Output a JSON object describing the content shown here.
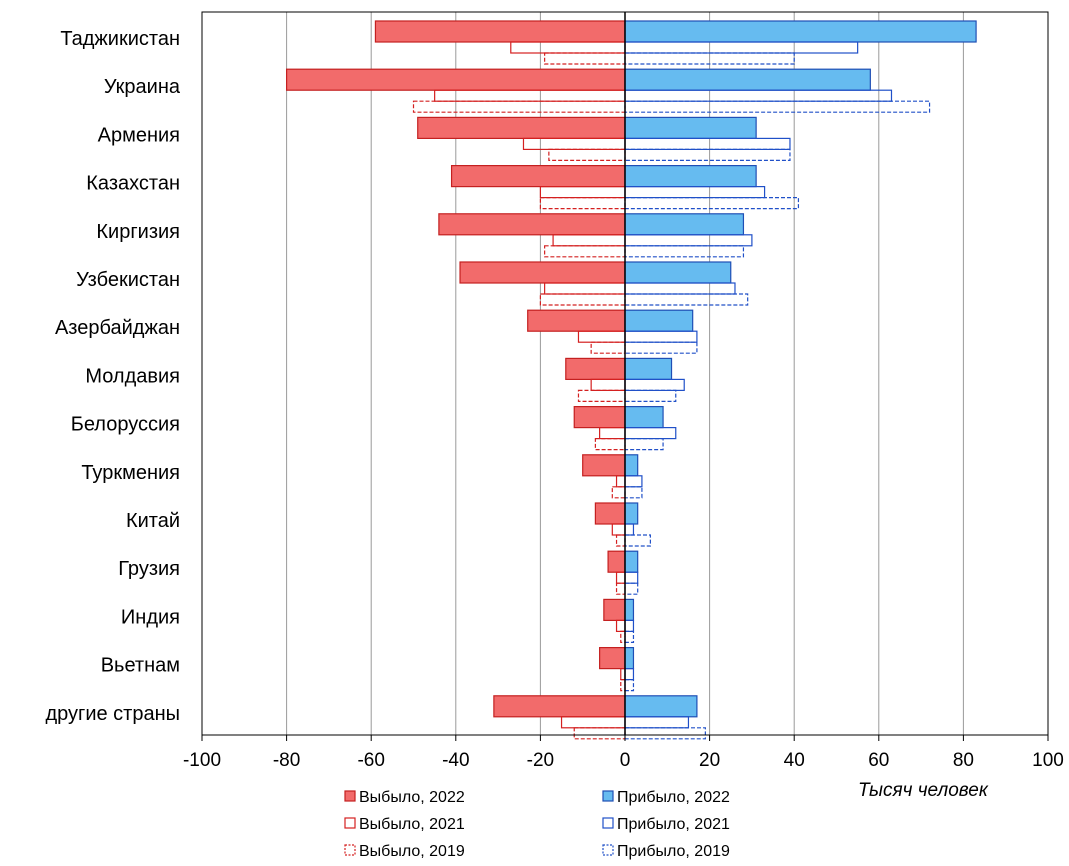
{
  "chart_data": {
    "type": "bar",
    "orientation": "horizontal",
    "unit_label": "Тысяч человек",
    "xlim": [
      -100,
      100
    ],
    "x_ticks": [
      "-100",
      "-80",
      "-60",
      "-40",
      "-20",
      "0",
      "20",
      "40",
      "60",
      "80",
      "100"
    ],
    "grid": true,
    "legend_position": "bottom",
    "categories": [
      "Таджикистан",
      "Украина",
      "Армения",
      "Казахстан",
      "Киргизия",
      "Узбекистан",
      "Азербайджан",
      "Молдавия",
      "Белоруссия",
      "Туркмения",
      "Китай",
      "Грузия",
      "Индия",
      "Вьетнам",
      "другие страны"
    ],
    "series": [
      {
        "name": "Выбыло, 2022",
        "values": [
          -59,
          -80,
          -49,
          -41,
          -44,
          -39,
          -23,
          -14,
          -12,
          -10,
          -7,
          -4,
          -5,
          -6,
          -31
        ],
        "color": "#f26b6b",
        "style": "filled"
      },
      {
        "name": "Выбыло, 2021",
        "values": [
          -27,
          -45,
          -24,
          -20,
          -17,
          -19,
          -11,
          -8,
          -6,
          -2,
          -3,
          -2,
          -2,
          -1,
          -15
        ],
        "color": "#d42020",
        "style": "outline"
      },
      {
        "name": "Выбыло, 2019",
        "values": [
          -19,
          -50,
          -18,
          -20,
          -19,
          -20,
          -8,
          -11,
          -7,
          -3,
          -2,
          -2,
          -1,
          -1,
          -12
        ],
        "color": "#d42020",
        "style": "dashed"
      },
      {
        "name": "Прибыло, 2022",
        "values": [
          83,
          58,
          31,
          31,
          28,
          25,
          16,
          11,
          9,
          3,
          3,
          3,
          2,
          2,
          17
        ],
        "color": "#66bbf0",
        "style": "filled"
      },
      {
        "name": "Прибыло, 2021",
        "values": [
          55,
          63,
          39,
          33,
          30,
          26,
          17,
          14,
          12,
          4,
          2,
          3,
          2,
          2,
          15
        ],
        "color": "#2050c8",
        "style": "outline"
      },
      {
        "name": "Прибыло, 2019",
        "values": [
          40,
          72,
          39,
          41,
          28,
          29,
          17,
          12,
          9,
          4,
          6,
          3,
          2,
          2,
          19
        ],
        "color": "#2050c8",
        "style": "dashed"
      }
    ]
  }
}
